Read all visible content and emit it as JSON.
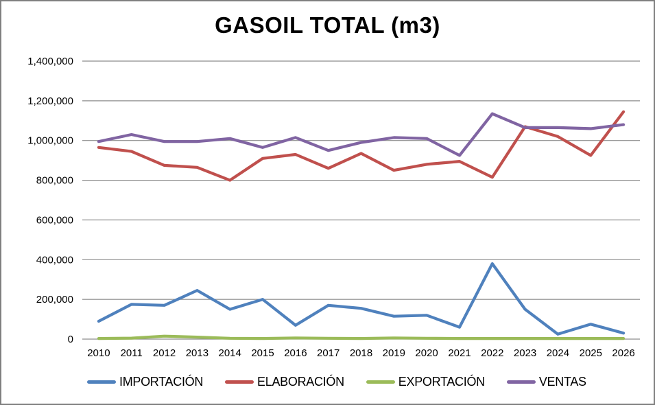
{
  "chart_data": {
    "type": "line",
    "title": "GASOIL TOTAL (m3)",
    "categories": [
      "2010",
      "2011",
      "2012",
      "2013",
      "2014",
      "2015",
      "2016",
      "2017",
      "2018",
      "2019",
      "2020",
      "2021",
      "2022",
      "2023",
      "2024",
      "2025",
      "2026"
    ],
    "series": [
      {
        "name": "IMPORTACIÓN",
        "color": "#4F81BD",
        "values": [
          90000,
          175000,
          170000,
          245000,
          150000,
          200000,
          70000,
          170000,
          155000,
          115000,
          120000,
          60000,
          380000,
          150000,
          25000,
          75000,
          30000
        ]
      },
      {
        "name": "ELABORACIÓN",
        "color": "#C0504D",
        "values": [
          965000,
          945000,
          875000,
          865000,
          800000,
          910000,
          930000,
          860000,
          935000,
          850000,
          880000,
          895000,
          815000,
          1070000,
          1020000,
          925000,
          1145000
        ]
      },
      {
        "name": "EXPORTACIÓN",
        "color": "#9BBB59",
        "values": [
          3000,
          5000,
          15000,
          10000,
          4000,
          3000,
          6000,
          4000,
          3000,
          6000,
          4000,
          3000,
          3000,
          3000,
          3000,
          3000,
          3000
        ]
      },
      {
        "name": "VENTAS",
        "color": "#8064A2",
        "values": [
          995000,
          1030000,
          995000,
          995000,
          1010000,
          965000,
          1015000,
          950000,
          990000,
          1015000,
          1010000,
          925000,
          1135000,
          1065000,
          1065000,
          1060000,
          1080000
        ]
      }
    ],
    "xlabel": "",
    "ylabel": "",
    "ylim": [
      0,
      1400000
    ],
    "ytick_step": 200000,
    "ytick_labels": [
      "0",
      "200,000",
      "400,000",
      "600,000",
      "800,000",
      "1,000,000",
      "1,200,000",
      "1,400,000"
    ],
    "grid": "horizontal",
    "gridline_color": "#8C8C8C",
    "legend_position": "bottom",
    "legend": [
      "IMPORTACIÓN",
      "ELABORACIÓN",
      "EXPORTACIÓN",
      "VENTAS"
    ]
  }
}
